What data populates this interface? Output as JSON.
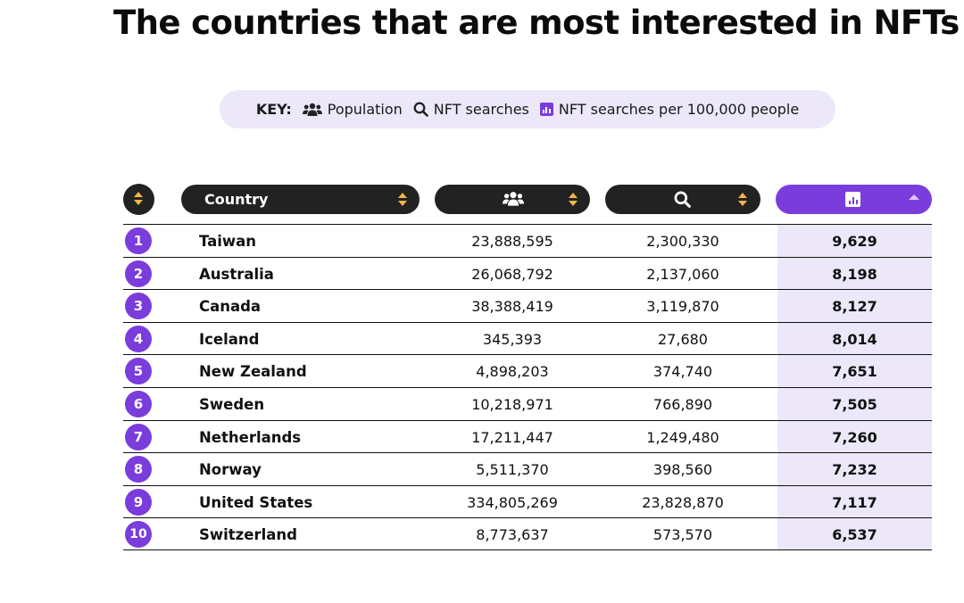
{
  "title": "The countries that are most interested in NFTs",
  "key": {
    "label": "KEY:",
    "items": [
      {
        "icon": "people-icon",
        "label": "Population"
      },
      {
        "icon": "search-icon",
        "label": "NFT searches"
      },
      {
        "icon": "bar-chart-icon",
        "label": "NFT searches per 100,000 people"
      }
    ]
  },
  "header": {
    "country_label": "Country",
    "sort_icons": [
      "sort-arrows-icon"
    ],
    "active_sort": "NFT searches per 100,000 people"
  },
  "colors": {
    "accent": "#7a3ddc",
    "accent_light": "#ece7f9",
    "header_bg": "#222222",
    "sort_arrow": "#f2b54a"
  },
  "rows": [
    {
      "rank": "1",
      "country": "Taiwan",
      "population": "23,888,595",
      "searches": "2,300,330",
      "per100k": "9,629"
    },
    {
      "rank": "2",
      "country": "Australia",
      "population": "26,068,792",
      "searches": "2,137,060",
      "per100k": "8,198"
    },
    {
      "rank": "3",
      "country": "Canada",
      "population": "38,388,419",
      "searches": "3,119,870",
      "per100k": "8,127"
    },
    {
      "rank": "4",
      "country": "Iceland",
      "population": "345,393",
      "searches": "27,680",
      "per100k": "8,014"
    },
    {
      "rank": "5",
      "country": "New Zealand",
      "population": "4,898,203",
      "searches": "374,740",
      "per100k": "7,651"
    },
    {
      "rank": "6",
      "country": "Sweden",
      "population": "10,218,971",
      "searches": "766,890",
      "per100k": "7,505"
    },
    {
      "rank": "7",
      "country": "Netherlands",
      "population": "17,211,447",
      "searches": "1,249,480",
      "per100k": "7,260"
    },
    {
      "rank": "8",
      "country": "Norway",
      "population": "5,511,370",
      "searches": "398,560",
      "per100k": "7,232"
    },
    {
      "rank": "9",
      "country": "United States",
      "population": "334,805,269",
      "searches": "23,828,870",
      "per100k": "7,117"
    },
    {
      "rank": "10",
      "country": "Switzerland",
      "population": "8,773,637",
      "searches": "573,570",
      "per100k": "6,537"
    }
  ]
}
